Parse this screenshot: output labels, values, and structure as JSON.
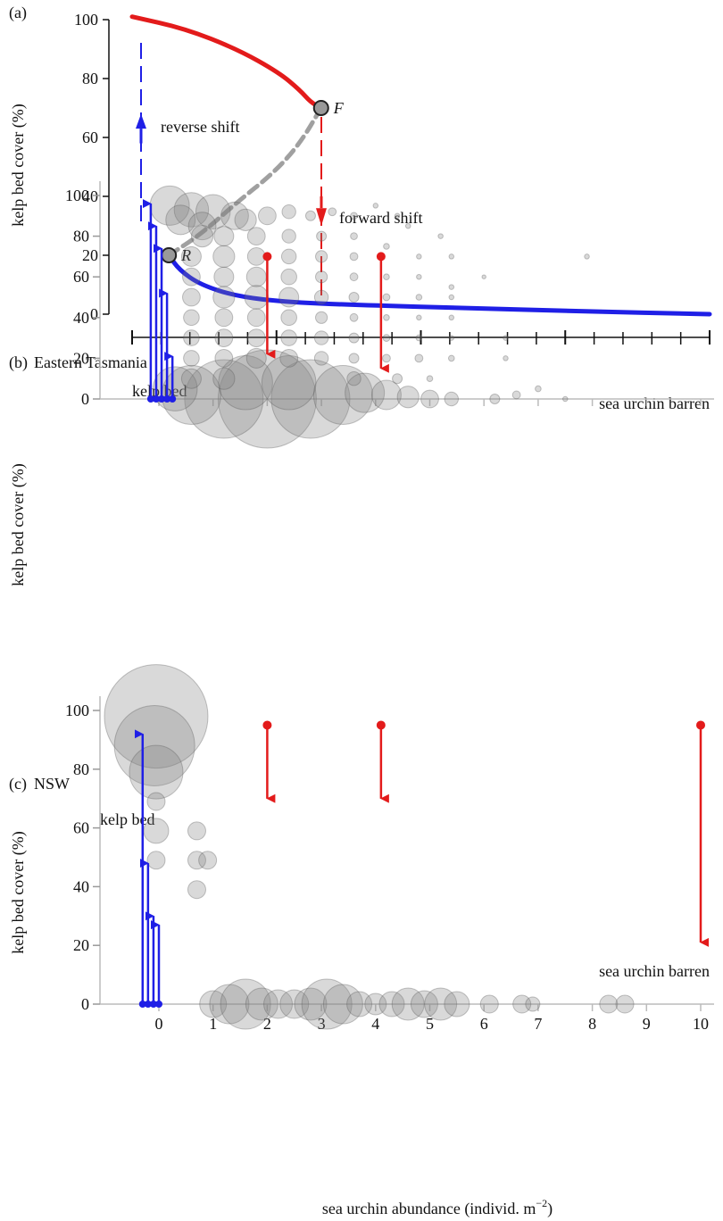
{
  "colors": {
    "red": "#e31b1b",
    "blue": "#1f1fe6",
    "grey": "#a0a0a0",
    "dot_fill": "#808080",
    "dot_stroke": "#555555"
  },
  "chart_data": [
    {
      "panel_label": "(a)",
      "type": "line",
      "ylabel": "kelp bed cover (%)",
      "xlabel": "",
      "x_tick_labels": [],
      "yticks": [
        0,
        20,
        40,
        60,
        80,
        100
      ],
      "ylim": [
        0,
        100
      ],
      "xlim": [
        -0.5,
        10.5
      ],
      "series": [
        {
          "style": "red-solid",
          "x": [
            -0.5,
            0.5,
            1.5,
            2.3,
            2.7,
            2.9,
            3.1
          ],
          "y": [
            101,
            97,
            90,
            82,
            76,
            72,
            70
          ]
        },
        {
          "style": "grey-dashed",
          "x": [
            0.2,
            0.8,
            1.5,
            2.2,
            2.7,
            3.1
          ],
          "y": [
            20,
            27,
            38,
            48,
            58,
            70
          ]
        },
        {
          "style": "blue-solid",
          "x": [
            0.2,
            0.4,
            0.8,
            1.5,
            2.5,
            4,
            6,
            8,
            10.5
          ],
          "y": [
            20,
            15,
            10,
            6,
            4,
            3,
            2,
            1,
            0
          ]
        }
      ],
      "points": [
        {
          "label": "F",
          "x": 3.1,
          "y": 70
        },
        {
          "label": "R",
          "x": 0.2,
          "y": 20
        }
      ],
      "annotations": {
        "reverse": "reverse shift",
        "forward": "forward shift"
      }
    },
    {
      "panel_label": "(b)",
      "region": "Eastern Tasmania",
      "type": "scatter",
      "ylabel": "kelp bed cover (%)",
      "yticks": [
        0,
        20,
        40,
        60,
        80,
        100
      ],
      "ylim": [
        0,
        100
      ],
      "xlim": [
        -0.5,
        10.5
      ],
      "top_label": "kelp bed",
      "bottom_label": "sea urchin barren",
      "bubbles": [
        {
          "x": 2.0,
          "y": 0,
          "r": 100
        },
        {
          "x": 1.2,
          "y": 0,
          "r": 80
        },
        {
          "x": 2.8,
          "y": 0,
          "r": 80
        },
        {
          "x": 0.6,
          "y": 2,
          "r": 60
        },
        {
          "x": 3.4,
          "y": 2,
          "r": 60
        },
        {
          "x": 1.6,
          "y": 8,
          "r": 55
        },
        {
          "x": 2.4,
          "y": 8,
          "r": 55
        },
        {
          "x": 0.3,
          "y": 5,
          "r": 45
        },
        {
          "x": 3.8,
          "y": 3,
          "r": 40
        },
        {
          "x": 4.2,
          "y": 2,
          "r": 30
        },
        {
          "x": 4.6,
          "y": 1,
          "r": 22
        },
        {
          "x": 5.0,
          "y": 0,
          "r": 18
        },
        {
          "x": 5.4,
          "y": 0,
          "r": 14
        },
        {
          "x": 6.2,
          "y": 0,
          "r": 10
        },
        {
          "x": 6.6,
          "y": 2,
          "r": 8
        },
        {
          "x": 7.0,
          "y": 5,
          "r": 6
        },
        {
          "x": 7.5,
          "y": 0,
          "r": 5
        },
        {
          "x": 0.2,
          "y": 95,
          "r": 40
        },
        {
          "x": 0.6,
          "y": 93,
          "r": 35
        },
        {
          "x": 1.0,
          "y": 92,
          "r": 35
        },
        {
          "x": 1.4,
          "y": 90,
          "r": 28
        },
        {
          "x": 0.4,
          "y": 88,
          "r": 30
        },
        {
          "x": 0.8,
          "y": 85,
          "r": 28
        },
        {
          "x": 1.6,
          "y": 88,
          "r": 22
        },
        {
          "x": 2.0,
          "y": 90,
          "r": 18
        },
        {
          "x": 2.4,
          "y": 92,
          "r": 14
        },
        {
          "x": 2.8,
          "y": 90,
          "r": 10
        },
        {
          "x": 3.2,
          "y": 92,
          "r": 8
        },
        {
          "x": 3.6,
          "y": 90,
          "r": 7
        },
        {
          "x": 4.0,
          "y": 95,
          "r": 5
        },
        {
          "x": 4.4,
          "y": 90,
          "r": 5
        },
        {
          "x": 0.8,
          "y": 80,
          "r": 22
        },
        {
          "x": 1.2,
          "y": 80,
          "r": 20
        },
        {
          "x": 1.8,
          "y": 80,
          "r": 18
        },
        {
          "x": 2.4,
          "y": 80,
          "r": 14
        },
        {
          "x": 3.0,
          "y": 80,
          "r": 10
        },
        {
          "x": 3.6,
          "y": 80,
          "r": 7
        },
        {
          "x": 4.6,
          "y": 85,
          "r": 5
        },
        {
          "x": 5.2,
          "y": 80,
          "r": 5
        },
        {
          "x": 0.6,
          "y": 70,
          "r": 20
        },
        {
          "x": 1.2,
          "y": 70,
          "r": 22
        },
        {
          "x": 1.8,
          "y": 70,
          "r": 18
        },
        {
          "x": 2.4,
          "y": 70,
          "r": 15
        },
        {
          "x": 3.0,
          "y": 70,
          "r": 12
        },
        {
          "x": 3.6,
          "y": 70,
          "r": 8
        },
        {
          "x": 4.2,
          "y": 75,
          "r": 6
        },
        {
          "x": 4.8,
          "y": 70,
          "r": 5
        },
        {
          "x": 5.4,
          "y": 70,
          "r": 5
        },
        {
          "x": 7.9,
          "y": 70,
          "r": 5
        },
        {
          "x": 0.6,
          "y": 60,
          "r": 18
        },
        {
          "x": 1.2,
          "y": 60,
          "r": 20
        },
        {
          "x": 1.8,
          "y": 60,
          "r": 20
        },
        {
          "x": 2.4,
          "y": 60,
          "r": 16
        },
        {
          "x": 3.0,
          "y": 60,
          "r": 12
        },
        {
          "x": 3.6,
          "y": 60,
          "r": 8
        },
        {
          "x": 4.2,
          "y": 60,
          "r": 6
        },
        {
          "x": 4.8,
          "y": 60,
          "r": 5
        },
        {
          "x": 5.4,
          "y": 55,
          "r": 5
        },
        {
          "x": 6.0,
          "y": 60,
          "r": 4
        },
        {
          "x": 0.6,
          "y": 50,
          "r": 18
        },
        {
          "x": 1.2,
          "y": 50,
          "r": 22
        },
        {
          "x": 1.8,
          "y": 50,
          "r": 24
        },
        {
          "x": 2.4,
          "y": 50,
          "r": 20
        },
        {
          "x": 3.0,
          "y": 50,
          "r": 14
        },
        {
          "x": 3.6,
          "y": 50,
          "r": 10
        },
        {
          "x": 4.2,
          "y": 50,
          "r": 7
        },
        {
          "x": 4.8,
          "y": 50,
          "r": 6
        },
        {
          "x": 5.4,
          "y": 50,
          "r": 5
        },
        {
          "x": 0.6,
          "y": 40,
          "r": 16
        },
        {
          "x": 1.2,
          "y": 40,
          "r": 18
        },
        {
          "x": 1.8,
          "y": 40,
          "r": 18
        },
        {
          "x": 2.4,
          "y": 40,
          "r": 16
        },
        {
          "x": 3.0,
          "y": 40,
          "r": 12
        },
        {
          "x": 3.6,
          "y": 40,
          "r": 8
        },
        {
          "x": 4.2,
          "y": 40,
          "r": 6
        },
        {
          "x": 4.8,
          "y": 40,
          "r": 5
        },
        {
          "x": 5.4,
          "y": 40,
          "r": 5
        },
        {
          "x": 0.6,
          "y": 30,
          "r": 16
        },
        {
          "x": 1.2,
          "y": 30,
          "r": 18
        },
        {
          "x": 1.8,
          "y": 30,
          "r": 18
        },
        {
          "x": 2.4,
          "y": 30,
          "r": 16
        },
        {
          "x": 3.0,
          "y": 30,
          "r": 14
        },
        {
          "x": 3.6,
          "y": 30,
          "r": 10
        },
        {
          "x": 4.2,
          "y": 30,
          "r": 7
        },
        {
          "x": 4.8,
          "y": 30,
          "r": 6
        },
        {
          "x": 5.4,
          "y": 30,
          "r": 5
        },
        {
          "x": 6.4,
          "y": 30,
          "r": 5
        },
        {
          "x": 0.6,
          "y": 20,
          "r": 16
        },
        {
          "x": 1.2,
          "y": 20,
          "r": 18
        },
        {
          "x": 1.8,
          "y": 20,
          "r": 20
        },
        {
          "x": 2.4,
          "y": 20,
          "r": 18
        },
        {
          "x": 3.0,
          "y": 20,
          "r": 14
        },
        {
          "x": 3.6,
          "y": 20,
          "r": 10
        },
        {
          "x": 4.2,
          "y": 20,
          "r": 8
        },
        {
          "x": 4.8,
          "y": 20,
          "r": 8
        },
        {
          "x": 5.4,
          "y": 20,
          "r": 6
        },
        {
          "x": 6.4,
          "y": 20,
          "r": 5
        },
        {
          "x": 0.6,
          "y": 10,
          "r": 20
        },
        {
          "x": 1.2,
          "y": 10,
          "r": 22
        },
        {
          "x": 3.6,
          "y": 10,
          "r": 14
        },
        {
          "x": 4.4,
          "y": 10,
          "r": 10
        },
        {
          "x": 5.0,
          "y": 10,
          "r": 6
        }
      ],
      "arrows_up": [
        {
          "x": -0.15,
          "y1": 0,
          "y2": 96
        },
        {
          "x": -0.05,
          "y1": 0,
          "y2": 85
        },
        {
          "x": 0.05,
          "y1": 0,
          "y2": 74
        },
        {
          "x": 0.15,
          "y1": 0,
          "y2": 52
        },
        {
          "x": 0.25,
          "y1": 0,
          "y2": 21
        }
      ],
      "arrows_down": [
        {
          "x": 2.0,
          "y1": 70,
          "y2": 22
        },
        {
          "x": 4.1,
          "y1": 70,
          "y2": 15
        }
      ]
    },
    {
      "panel_label": "(c)",
      "region": "NSW",
      "type": "scatter",
      "ylabel": "kelp bed cover (%)",
      "xlabel": "sea urchin abundance (individ. m",
      "xlabel_sup": "−2",
      "xlabel_end": ")",
      "x_tick_labels": [
        "0",
        "1",
        "2",
        "3",
        "4",
        "5",
        "6",
        "7",
        "8",
        "9",
        "10"
      ],
      "yticks": [
        0,
        20,
        40,
        60,
        80,
        100
      ],
      "ylim": [
        0,
        100
      ],
      "xlim": [
        -0.5,
        10.5
      ],
      "top_label": "kelp bed",
      "bottom_label": "sea urchin barren",
      "bubbles": [
        {
          "x": -0.05,
          "y": 98,
          "r": 58
        },
        {
          "x": -0.08,
          "y": 88,
          "r": 45
        },
        {
          "x": -0.05,
          "y": 79,
          "r": 30
        },
        {
          "x": -0.05,
          "y": 69,
          "r": 10
        },
        {
          "x": -0.05,
          "y": 59,
          "r": 14
        },
        {
          "x": -0.05,
          "y": 49,
          "r": 10
        },
        {
          "x": 0.7,
          "y": 59,
          "r": 10
        },
        {
          "x": 0.7,
          "y": 49,
          "r": 10
        },
        {
          "x": 0.9,
          "y": 49,
          "r": 10
        },
        {
          "x": 0.7,
          "y": 39,
          "r": 10
        },
        {
          "x": 1.0,
          "y": 0,
          "r": 15
        },
        {
          "x": 1.3,
          "y": 0,
          "r": 22
        },
        {
          "x": 1.6,
          "y": 0,
          "r": 28
        },
        {
          "x": 1.9,
          "y": 0,
          "r": 18
        },
        {
          "x": 2.2,
          "y": 0,
          "r": 16
        },
        {
          "x": 2.5,
          "y": 0,
          "r": 16
        },
        {
          "x": 2.8,
          "y": 0,
          "r": 18
        },
        {
          "x": 3.1,
          "y": 0,
          "r": 28
        },
        {
          "x": 3.4,
          "y": 0,
          "r": 22
        },
        {
          "x": 3.7,
          "y": 0,
          "r": 14
        },
        {
          "x": 4.0,
          "y": 0,
          "r": 12
        },
        {
          "x": 4.3,
          "y": 0,
          "r": 14
        },
        {
          "x": 4.6,
          "y": 0,
          "r": 18
        },
        {
          "x": 4.9,
          "y": 0,
          "r": 15
        },
        {
          "x": 5.2,
          "y": 0,
          "r": 18
        },
        {
          "x": 5.5,
          "y": 0,
          "r": 14
        },
        {
          "x": 6.1,
          "y": 0,
          "r": 10
        },
        {
          "x": 6.7,
          "y": 0,
          "r": 10
        },
        {
          "x": 6.9,
          "y": 0,
          "r": 8
        },
        {
          "x": 8.3,
          "y": 0,
          "r": 10
        },
        {
          "x": 8.6,
          "y": 0,
          "r": 10
        }
      ],
      "arrows_up": [
        {
          "x": -0.3,
          "y1": 0,
          "y2": 92
        },
        {
          "x": -0.2,
          "y1": 0,
          "y2": 48
        },
        {
          "x": -0.1,
          "y1": 0,
          "y2": 30
        },
        {
          "x": 0.0,
          "y1": 0,
          "y2": 27
        }
      ],
      "arrows_down": [
        {
          "x": 2.0,
          "y1": 95,
          "y2": 70
        },
        {
          "x": 4.1,
          "y1": 95,
          "y2": 70
        },
        {
          "x": 10.0,
          "y1": 95,
          "y2": 21
        }
      ]
    }
  ]
}
